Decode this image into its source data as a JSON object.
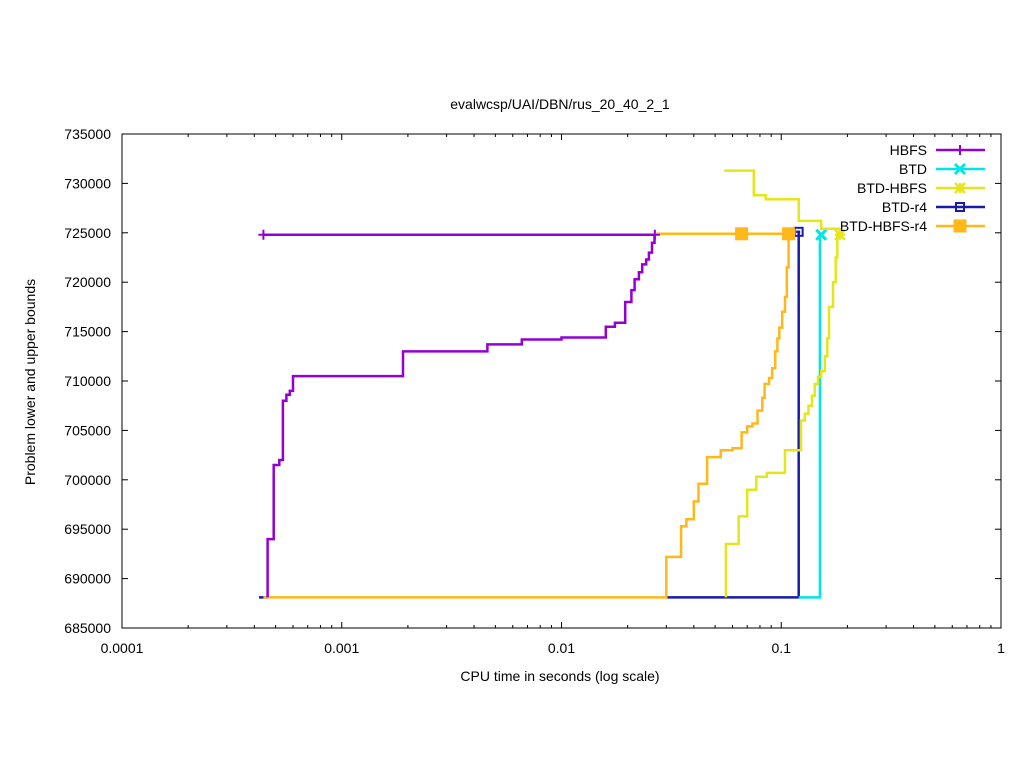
{
  "chart_data": {
    "type": "line",
    "title": "evalwcsp/UAI/DBN/rus_20_40_2_1",
    "xlabel": "CPU time in seconds (log scale)",
    "ylabel": "Problem lower and upper bounds",
    "xscale": "log",
    "xlim": [
      0.0001,
      1
    ],
    "ylim": [
      685000,
      735000
    ],
    "xticks": [
      {
        "value": 0.0001,
        "label": "0.0001"
      },
      {
        "value": 0.001,
        "label": "0.001"
      },
      {
        "value": 0.01,
        "label": "0.01"
      },
      {
        "value": 0.1,
        "label": "0.1"
      },
      {
        "value": 1,
        "label": "1"
      }
    ],
    "yticks": [
      {
        "value": 685000,
        "label": "685000"
      },
      {
        "value": 690000,
        "label": "690000"
      },
      {
        "value": 695000,
        "label": "695000"
      },
      {
        "value": 700000,
        "label": "700000"
      },
      {
        "value": 705000,
        "label": "705000"
      },
      {
        "value": 710000,
        "label": "710000"
      },
      {
        "value": 715000,
        "label": "715000"
      },
      {
        "value": 720000,
        "label": "720000"
      },
      {
        "value": 725000,
        "label": "725000"
      },
      {
        "value": 730000,
        "label": "730000"
      },
      {
        "value": 735000,
        "label": "735000"
      }
    ],
    "legend_position": "top-right",
    "series": [
      {
        "name": "HBFS",
        "color": "#9400d3",
        "marker": "plus",
        "lower": [
          [
            0.00046,
            688100
          ],
          [
            0.00046,
            694000
          ],
          [
            0.00049,
            694000
          ],
          [
            0.00049,
            701500
          ],
          [
            0.00052,
            701500
          ],
          [
            0.00052,
            702000
          ],
          [
            0.00054,
            702000
          ],
          [
            0.00054,
            708000
          ],
          [
            0.00056,
            708000
          ],
          [
            0.00056,
            708600
          ],
          [
            0.00058,
            708600
          ],
          [
            0.00058,
            709000
          ],
          [
            0.0006,
            709000
          ],
          [
            0.0006,
            710500
          ],
          [
            0.0019,
            710500
          ],
          [
            0.0019,
            713000
          ],
          [
            0.0046,
            713000
          ],
          [
            0.0046,
            713700
          ],
          [
            0.0066,
            713700
          ],
          [
            0.0066,
            714200
          ],
          [
            0.01,
            714200
          ],
          [
            0.01,
            714400
          ],
          [
            0.0159,
            714400
          ],
          [
            0.0159,
            715500
          ],
          [
            0.0175,
            715500
          ],
          [
            0.0175,
            715900
          ],
          [
            0.0195,
            715900
          ],
          [
            0.0195,
            718000
          ],
          [
            0.0208,
            718000
          ],
          [
            0.0208,
            719200
          ],
          [
            0.0215,
            719200
          ],
          [
            0.0215,
            720300
          ],
          [
            0.0225,
            720300
          ],
          [
            0.0225,
            721000
          ],
          [
            0.0233,
            721000
          ],
          [
            0.0233,
            721800
          ],
          [
            0.0243,
            721800
          ],
          [
            0.0243,
            722300
          ],
          [
            0.025,
            722300
          ],
          [
            0.025,
            723000
          ],
          [
            0.0258,
            723000
          ],
          [
            0.0258,
            724000
          ],
          [
            0.0265,
            724000
          ],
          [
            0.0265,
            724800
          ]
        ],
        "upper": [
          [
            0.00044,
            724800
          ],
          [
            0.0266,
            724800
          ]
        ],
        "markers": [
          [
            0.00044,
            724800
          ],
          [
            0.0266,
            724800
          ]
        ]
      },
      {
        "name": "BTD",
        "color": "#00e5e5",
        "marker": "x",
        "lower": [
          [
            0.12,
            688100
          ],
          [
            0.15,
            688100
          ],
          [
            0.15,
            724800
          ]
        ],
        "upper": [
          [
            0.15,
            724800
          ]
        ],
        "markers": [
          [
            0.152,
            724800
          ]
        ]
      },
      {
        "name": "BTD-HBFS",
        "color": "#e5e51a",
        "marker": "star",
        "lower": [
          [
            0.056,
            688100
          ],
          [
            0.056,
            693500
          ],
          [
            0.064,
            693500
          ],
          [
            0.064,
            696300
          ],
          [
            0.07,
            696300
          ],
          [
            0.07,
            699000
          ],
          [
            0.077,
            699000
          ],
          [
            0.077,
            700300
          ],
          [
            0.086,
            700300
          ],
          [
            0.086,
            700700
          ],
          [
            0.104,
            700700
          ],
          [
            0.104,
            703000
          ],
          [
            0.123,
            703000
          ],
          [
            0.123,
            706000
          ],
          [
            0.128,
            706000
          ],
          [
            0.128,
            706700
          ],
          [
            0.133,
            706700
          ],
          [
            0.133,
            707500
          ],
          [
            0.138,
            707500
          ],
          [
            0.138,
            708500
          ],
          [
            0.142,
            708500
          ],
          [
            0.142,
            709700
          ],
          [
            0.147,
            709700
          ],
          [
            0.147,
            710400
          ],
          [
            0.152,
            710400
          ],
          [
            0.152,
            711000
          ],
          [
            0.158,
            711000
          ],
          [
            0.158,
            712500
          ],
          [
            0.162,
            712500
          ],
          [
            0.162,
            714300
          ],
          [
            0.165,
            714300
          ],
          [
            0.165,
            717500
          ],
          [
            0.172,
            717500
          ],
          [
            0.172,
            720000
          ],
          [
            0.177,
            720000
          ],
          [
            0.177,
            722500
          ],
          [
            0.18,
            722500
          ],
          [
            0.18,
            724800
          ]
        ],
        "upper": [
          [
            0.055,
            731300
          ],
          [
            0.075,
            731300
          ],
          [
            0.075,
            728800
          ],
          [
            0.085,
            728800
          ],
          [
            0.085,
            728400
          ],
          [
            0.12,
            728400
          ],
          [
            0.12,
            726200
          ],
          [
            0.152,
            726200
          ],
          [
            0.152,
            725400
          ],
          [
            0.185,
            725400
          ],
          [
            0.185,
            724800
          ]
        ],
        "markers": [
          [
            0.185,
            724800
          ]
        ]
      },
      {
        "name": "BTD-r4",
        "color": "#1a1aaa",
        "marker": "square",
        "lower": [
          [
            0.00042,
            688100
          ],
          [
            0.00046,
            688100
          ]
        ],
        "lower2": [
          [
            0.03,
            688100
          ],
          [
            0.12,
            688100
          ],
          [
            0.12,
            725100
          ]
        ],
        "upper": [
          [
            0.117,
            725100
          ],
          [
            0.122,
            725100
          ]
        ],
        "markers": [
          [
            0.12,
            725100
          ]
        ]
      },
      {
        "name": "BTD-HBFS-r4",
        "color": "#ffb81a",
        "marker": "filled-square",
        "lower": [
          [
            0.00044,
            688100
          ],
          [
            0.03,
            688100
          ],
          [
            0.03,
            692200
          ],
          [
            0.035,
            692200
          ],
          [
            0.035,
            695300
          ],
          [
            0.037,
            695300
          ],
          [
            0.037,
            696000
          ],
          [
            0.04,
            696000
          ],
          [
            0.04,
            697800
          ],
          [
            0.042,
            697800
          ],
          [
            0.042,
            699600
          ],
          [
            0.046,
            699600
          ],
          [
            0.046,
            702300
          ],
          [
            0.053,
            702300
          ],
          [
            0.053,
            703000
          ],
          [
            0.06,
            703000
          ],
          [
            0.06,
            703200
          ],
          [
            0.066,
            703200
          ],
          [
            0.066,
            704800
          ],
          [
            0.07,
            704800
          ],
          [
            0.07,
            705400
          ],
          [
            0.074,
            705400
          ],
          [
            0.074,
            705700
          ],
          [
            0.078,
            705700
          ],
          [
            0.078,
            707000
          ],
          [
            0.082,
            707000
          ],
          [
            0.082,
            708300
          ],
          [
            0.084,
            708300
          ],
          [
            0.084,
            709700
          ],
          [
            0.088,
            709700
          ],
          [
            0.088,
            710300
          ],
          [
            0.091,
            710300
          ],
          [
            0.091,
            711300
          ],
          [
            0.094,
            711300
          ],
          [
            0.094,
            713000
          ],
          [
            0.096,
            713000
          ],
          [
            0.096,
            714300
          ],
          [
            0.098,
            714300
          ],
          [
            0.098,
            715400
          ],
          [
            0.101,
            715400
          ],
          [
            0.101,
            717000
          ],
          [
            0.104,
            717000
          ],
          [
            0.104,
            718500
          ],
          [
            0.106,
            718500
          ],
          [
            0.106,
            721500
          ],
          [
            0.108,
            721500
          ],
          [
            0.108,
            724900
          ]
        ],
        "upper": [
          [
            0.027,
            724900
          ],
          [
            0.108,
            724900
          ]
        ],
        "markers": [
          [
            0.066,
            724900
          ],
          [
            0.108,
            724900
          ]
        ]
      }
    ]
  }
}
